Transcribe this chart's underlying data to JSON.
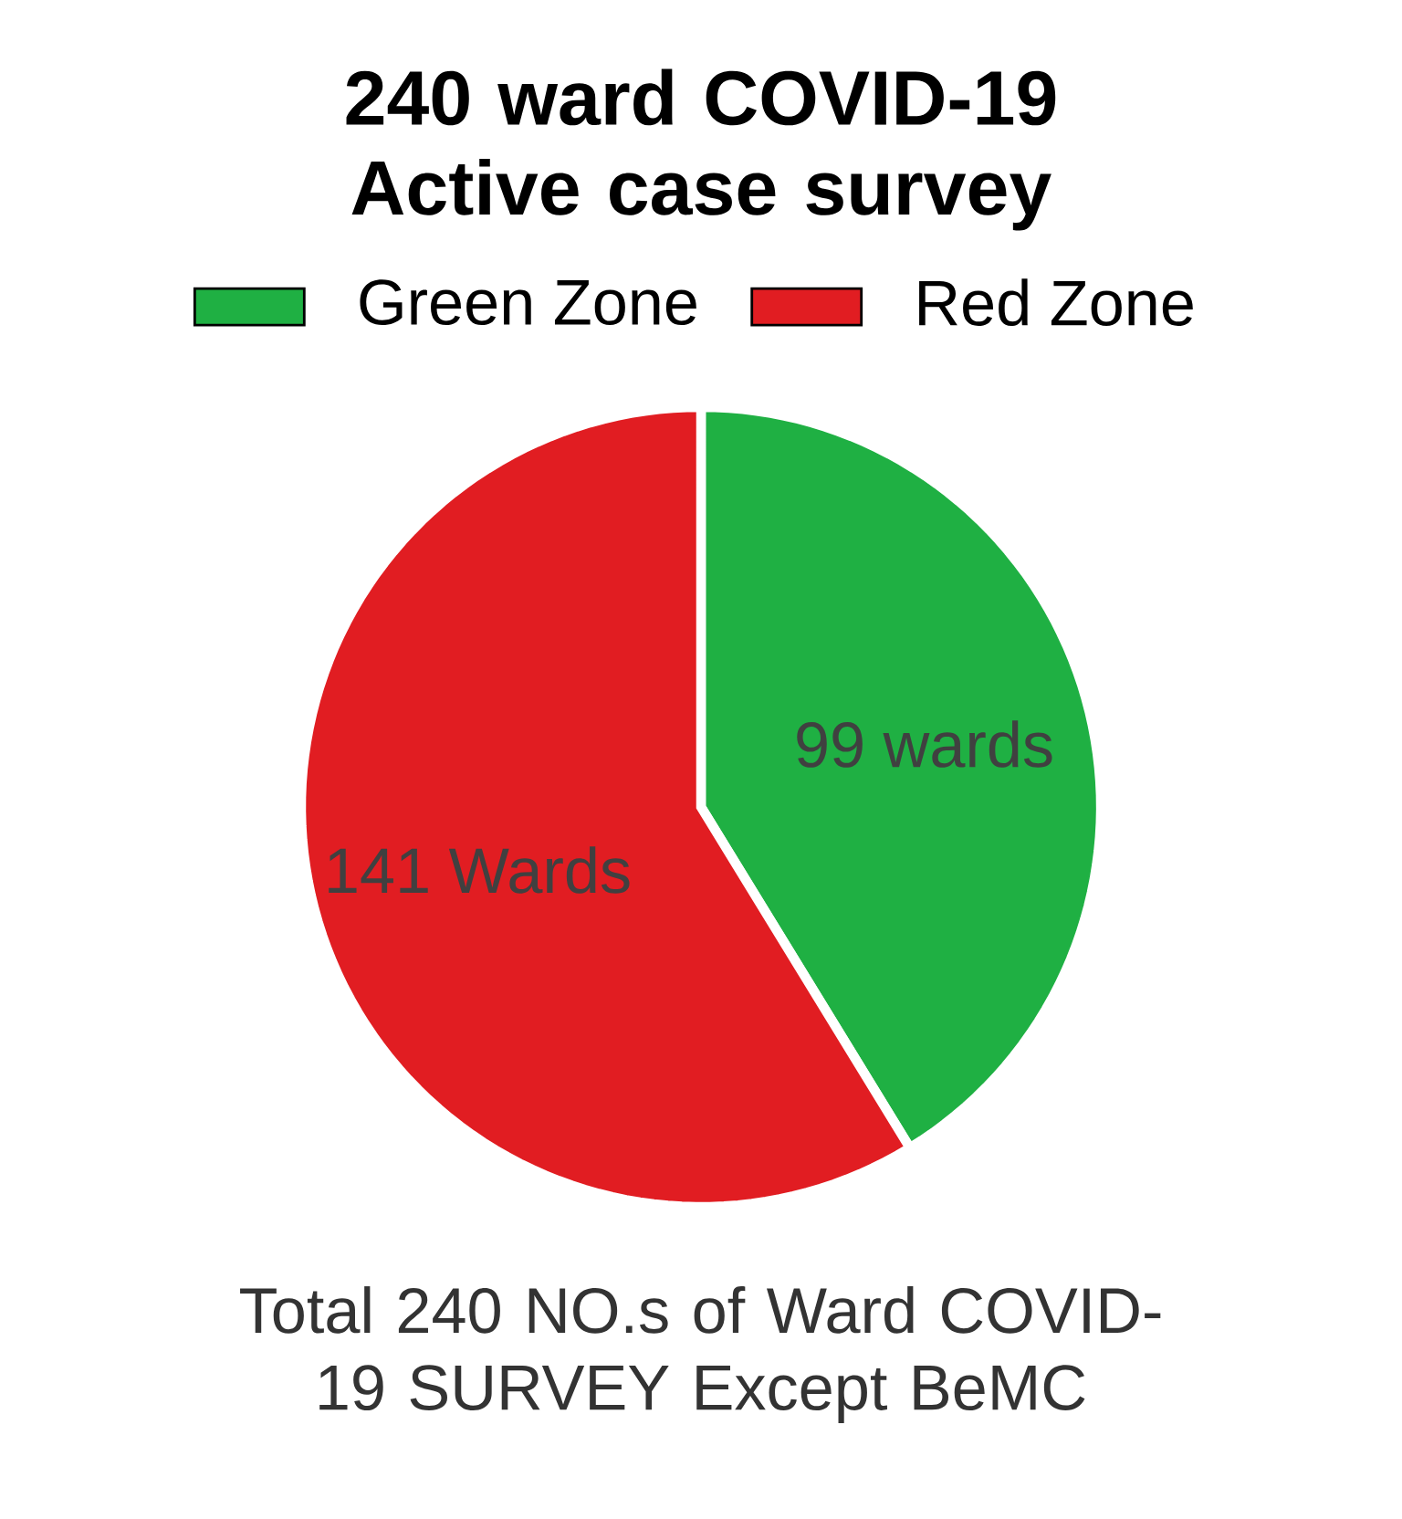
{
  "chart_data": {
    "type": "pie",
    "title": "240 ward COVID-19 Active case survey",
    "categories": [
      "Green Zone",
      "Red Zone"
    ],
    "values": [
      99,
      141
    ],
    "colors": [
      "#1fb043",
      "#e11d22"
    ],
    "value_labels": [
      "99 wards",
      "141 Wards"
    ],
    "legend": "top",
    "annotations": [
      "Total 240 NO.s of Ward COVID-19 SURVEY Except BeMC"
    ]
  }
}
